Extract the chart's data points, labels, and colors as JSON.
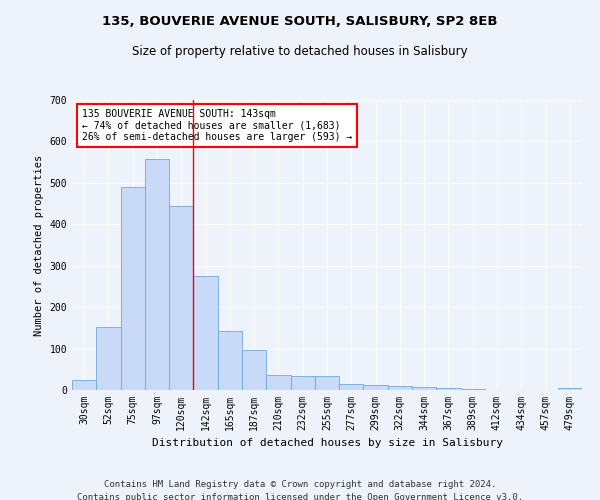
{
  "title1": "135, BOUVERIE AVENUE SOUTH, SALISBURY, SP2 8EB",
  "title2": "Size of property relative to detached houses in Salisbury",
  "xlabel": "Distribution of detached houses by size in Salisbury",
  "ylabel": "Number of detached properties",
  "bar_color": "#c9daf8",
  "bar_edge_color": "#6fa8dc",
  "categories": [
    "30sqm",
    "52sqm",
    "75sqm",
    "97sqm",
    "120sqm",
    "142sqm",
    "165sqm",
    "187sqm",
    "210sqm",
    "232sqm",
    "255sqm",
    "277sqm",
    "299sqm",
    "322sqm",
    "344sqm",
    "367sqm",
    "389sqm",
    "412sqm",
    "434sqm",
    "457sqm",
    "479sqm"
  ],
  "values": [
    25,
    153,
    490,
    558,
    443,
    275,
    143,
    97,
    37,
    35,
    33,
    15,
    12,
    10,
    7,
    5,
    3,
    0,
    0,
    0,
    4
  ],
  "marker_idx": 5,
  "marker_label_line1": "135 BOUVERIE AVENUE SOUTH: 143sqm",
  "marker_label_line2": "← 74% of detached houses are smaller (1,683)",
  "marker_label_line3": "26% of semi-detached houses are larger (593) →",
  "ylim": [
    0,
    700
  ],
  "yticks": [
    0,
    100,
    200,
    300,
    400,
    500,
    600,
    700
  ],
  "footer1": "Contains HM Land Registry data © Crown copyright and database right 2024.",
  "footer2": "Contains public sector information licensed under the Open Government Licence v3.0.",
  "background_color": "#eef2fb",
  "grid_color": "#ffffff",
  "title1_fontsize": 9.5,
  "title2_fontsize": 8.5,
  "xlabel_fontsize": 8,
  "ylabel_fontsize": 7.5,
  "tick_fontsize": 7,
  "annotation_fontsize": 7,
  "footer_fontsize": 6.5
}
